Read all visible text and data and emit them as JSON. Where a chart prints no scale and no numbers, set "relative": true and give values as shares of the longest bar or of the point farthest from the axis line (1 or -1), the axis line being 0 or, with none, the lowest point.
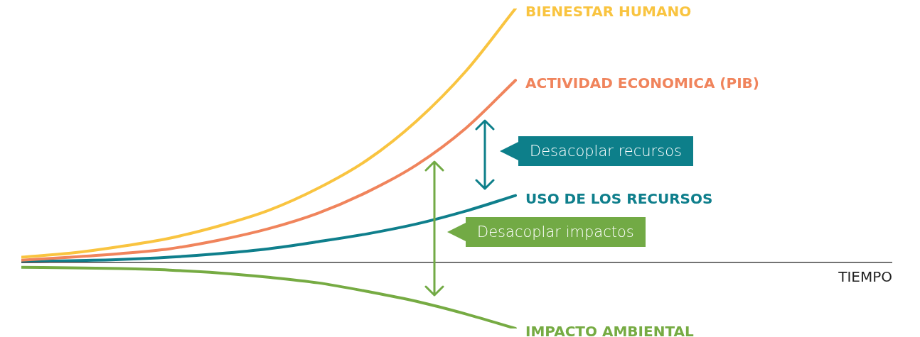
{
  "chart_data": {
    "type": "line",
    "relative": true,
    "legend": false,
    "tick_labels": false,
    "marker": "none",
    "line_style": "solid",
    "categories": [
      null,
      null,
      null,
      null,
      null,
      null,
      null,
      null,
      null,
      null,
      null
    ],
    "series": [
      {
        "name": "BIENESTAR HUMANO",
        "color": "#f9c440",
        "values": [
          0.02,
          0.036,
          0.062,
          0.095,
          0.143,
          0.204,
          0.291,
          0.403,
          0.557,
          0.754,
          1
        ]
      },
      {
        "name": "ACTIVIDAD ECONOMICA (PIB)",
        "color": "#f0845c",
        "values": [
          0.008,
          0.02,
          0.034,
          0.053,
          0.087,
          0.132,
          0.193,
          0.277,
          0.384,
          0.529,
          0.717
        ]
      },
      {
        "name": "USO DE LOS RECURSOS",
        "color": "#0f7f8c",
        "values": [
          0.003,
          0.006,
          0.011,
          0.02,
          0.034,
          0.053,
          0.081,
          0.112,
          0.151,
          0.202,
          0.263
        ]
      },
      {
        "name": "IMPACTO AMBIENTAL",
        "color": "#76ab43",
        "values": [
          -0.02,
          -0.022,
          -0.025,
          -0.031,
          -0.042,
          -0.059,
          -0.081,
          -0.115,
          -0.154,
          -0.204,
          -0.261
        ]
      }
    ],
    "annotations": [
      "Desacoplar recursos",
      "Desacoplar impactos",
      "TIEMPO"
    ]
  }
}
